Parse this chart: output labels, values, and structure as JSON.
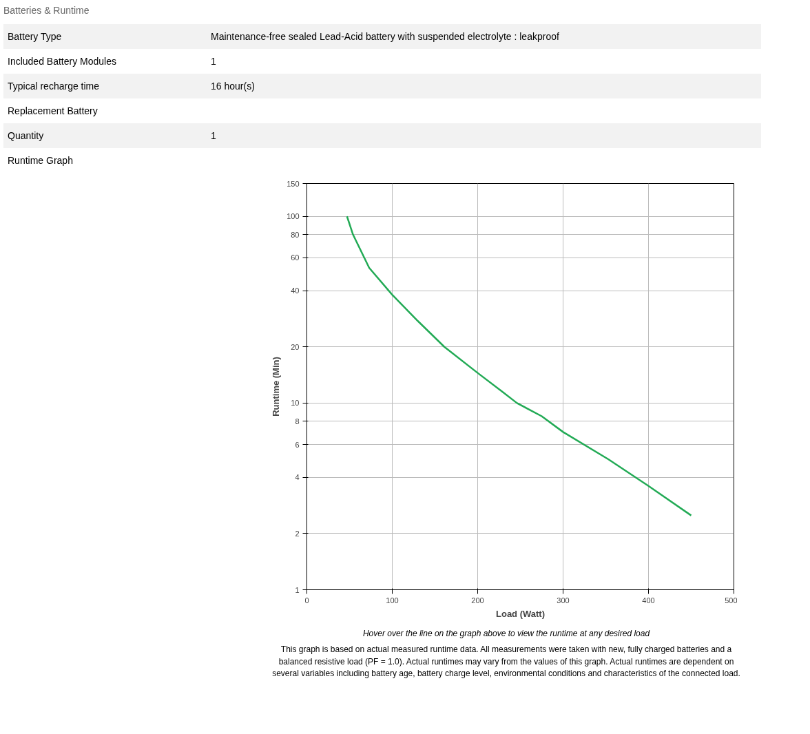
{
  "chart_data": {
    "type": "line",
    "title": "Batteries & Runtime",
    "xlabel": "Load (Watt)",
    "ylabel": "Runtime (Min)",
    "x": [
      47,
      54,
      73,
      100,
      130,
      161,
      200,
      229,
      246,
      275,
      300,
      353,
      400,
      450
    ],
    "series": [
      {
        "color": "#22aa55",
        "values": [
          100,
          80,
          53,
          38,
          27.5,
          20,
          14.5,
          11.5,
          10,
          8.5,
          7.0,
          5.0,
          3.6,
          2.5
        ]
      }
    ],
    "xlim": [
      0,
      500
    ],
    "ylim": [
      1,
      150
    ],
    "xticks": [
      0,
      100,
      200,
      300,
      400,
      500
    ],
    "yticks": [
      1,
      2,
      4,
      6,
      8,
      10,
      20,
      40,
      60,
      80,
      100,
      150
    ],
    "log": "y",
    "grid": true,
    "annotations": [
      "Battery Type\tMaintenance-free sealed Lead-Acid battery with suspended electrolyte : leakproof",
      "Included Battery Modules\t1",
      "Typical recharge time\t16 hour(s)",
      "Replacement Battery",
      "Quantity\t1",
      "Runtime Graph",
      "Hover over the line on the graph above to view the runtime at any desired load",
      "This graph is based on actual measured runtime data. All measurements were taken with new, fully charged batteries and a balanced resistive load (PF = 1.0). Actual runtimes may vary from the values of this graph. Actual runtimes are dependent on several variables including battery age, battery charge level, environmental conditions and characteristics of the connected load."
    ]
  }
}
